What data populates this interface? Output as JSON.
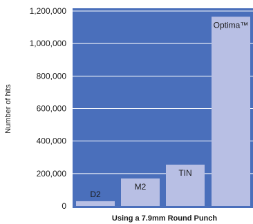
{
  "chart_data": {
    "type": "bar",
    "title": "",
    "xlabel": "Using a 7.9mm Round Punch",
    "ylabel": "Number of hits",
    "categories": [
      "D2",
      "M2",
      "TIN",
      "Optima™"
    ],
    "values": [
      30000,
      170000,
      255000,
      1165000
    ],
    "ylim": [
      0,
      1200000
    ],
    "yticks": [
      0,
      200000,
      400000,
      600000,
      800000,
      1000000,
      1200000
    ],
    "ytick_labels": [
      "0",
      "200,000",
      "400,000",
      "600,000",
      "800,000",
      "1,000,000",
      "1,200,000"
    ],
    "grid": true,
    "label_position": "inside-top",
    "colors": {
      "plot_background": "#4a6fbb",
      "bar": "#b8bfe4",
      "gridline": "#ffffff"
    }
  }
}
